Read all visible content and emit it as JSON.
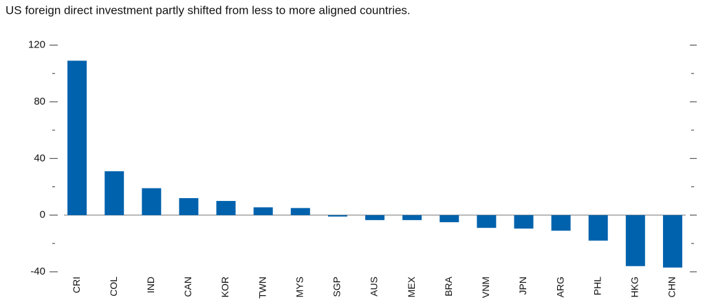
{
  "chart_data": {
    "type": "bar",
    "title": "US foreign direct investment partly shifted from less to more aligned countries.",
    "categories": [
      "CRI",
      "COL",
      "IND",
      "CAN",
      "KOR",
      "TWN",
      "MYS",
      "SGP",
      "AUS",
      "MEX",
      "BRA",
      "VNM",
      "JPN",
      "ARG",
      "PHL",
      "HKG",
      "CHN"
    ],
    "values": [
      109,
      31,
      19,
      12,
      10,
      5.5,
      5,
      -1,
      -3.5,
      -3.5,
      -5,
      -9,
      -9.5,
      -11,
      -18,
      -36,
      -37
    ],
    "color": "#0062ad",
    "ylim": [
      -40,
      130
    ],
    "yticks": [
      -40,
      0,
      40,
      80,
      120
    ],
    "minor_yticks": [
      -20,
      20,
      60,
      100
    ]
  }
}
